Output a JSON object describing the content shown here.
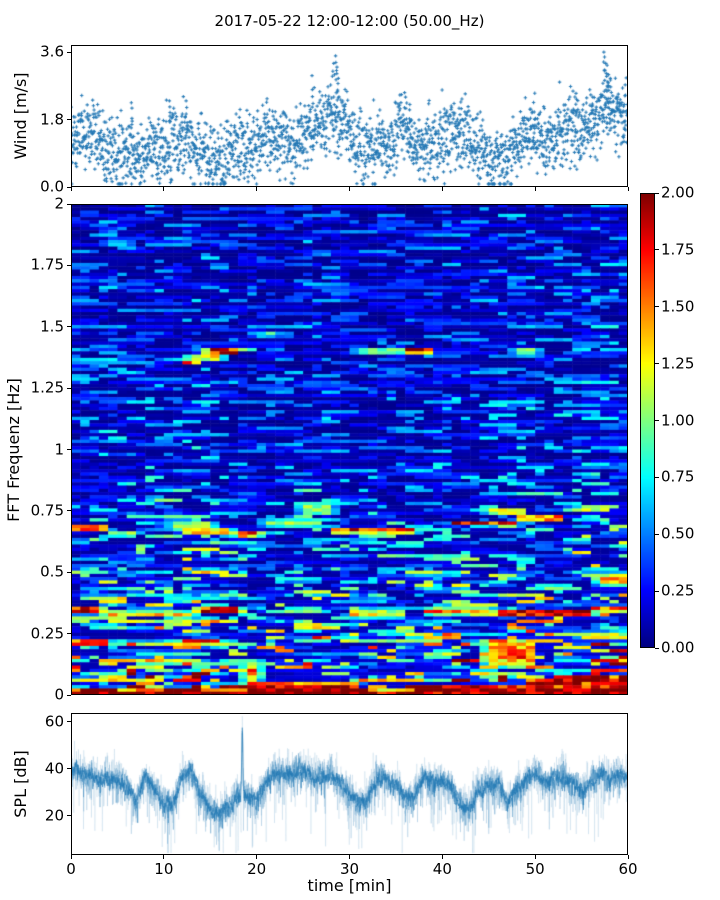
{
  "figure": {
    "title": "2017-05-22 12:00-12:00 (50.00_Hz)",
    "background": "#ffffff"
  },
  "colors": {
    "scatter": "#2277b4",
    "line": "#1f77b4",
    "axis": "#000000",
    "colormap_low": "#000080",
    "colormap_high": "#800000"
  },
  "chart_data": [
    {
      "id": "wind",
      "type": "scatter",
      "marker": "plus",
      "color": "#2277b4",
      "ylabel": "Wind [m/s]",
      "xlim": [
        0,
        60
      ],
      "ylim": [
        0,
        3.79
      ],
      "yticks": [
        0.0,
        1.8,
        3.6
      ],
      "ytick_labels": [
        "0.0",
        "1.8",
        "3.6"
      ],
      "xticks": [
        0,
        10,
        20,
        30,
        40,
        50,
        60
      ],
      "points_per_minute": 40,
      "spread": 0.78,
      "envelope_t_step": 1,
      "envelope_mean": [
        1.1,
        1.4,
        1.5,
        1.3,
        1.0,
        0.75,
        0.8,
        0.75,
        0.85,
        0.9,
        1.0,
        1.1,
        1.25,
        1.05,
        0.95,
        0.75,
        0.7,
        0.85,
        0.95,
        1.0,
        1.1,
        1.35,
        1.4,
        1.1,
        0.95,
        1.3,
        1.6,
        1.7,
        1.9,
        1.7,
        1.5,
        1.1,
        1.0,
        1.1,
        1.2,
        1.4,
        1.5,
        1.2,
        1.0,
        1.2,
        1.3,
        1.45,
        1.5,
        1.3,
        1.1,
        0.7,
        0.65,
        0.8,
        1.1,
        1.4,
        1.5,
        1.3,
        1.2,
        1.4,
        1.6,
        1.5,
        1.7,
        2.0,
        2.1,
        1.8,
        1.9
      ],
      "peaks": [
        {
          "t": 6.5,
          "y": 2.25
        },
        {
          "t": 10.6,
          "y": 2.3
        },
        {
          "t": 12.4,
          "y": 2.3
        },
        {
          "t": 26.0,
          "y": 2.6
        },
        {
          "t": 28.3,
          "y": 3.3
        },
        {
          "t": 28.5,
          "y": 3.5
        },
        {
          "t": 28.65,
          "y": 3.2
        },
        {
          "t": 28.8,
          "y": 2.9
        },
        {
          "t": 36.5,
          "y": 2.2
        },
        {
          "t": 41.8,
          "y": 2.1
        },
        {
          "t": 49.9,
          "y": 2.0
        },
        {
          "t": 54.4,
          "y": 2.5
        },
        {
          "t": 56.2,
          "y": 2.4
        },
        {
          "t": 57.4,
          "y": 3.6
        },
        {
          "t": 57.6,
          "y": 3.3
        },
        {
          "t": 57.75,
          "y": 3.25
        },
        {
          "t": 57.9,
          "y": 3.0
        },
        {
          "t": 58.1,
          "y": 2.9
        },
        {
          "t": 58.9,
          "y": 2.4
        },
        {
          "t": 59.6,
          "y": 2.2
        }
      ]
    },
    {
      "id": "spectrogram",
      "type": "heatmap",
      "ylabel": "FFT Frequenz [Hz]",
      "xlim": [
        0,
        60
      ],
      "ylim": [
        0,
        2
      ],
      "yticks": [
        0,
        0.25,
        0.5,
        0.75,
        1,
        1.25,
        1.5,
        1.75,
        2
      ],
      "ytick_labels": [
        "0",
        "0.25",
        "0.5",
        "0.75",
        "1",
        "1.25",
        "1.5",
        "1.75",
        "2"
      ],
      "colormap": "jet",
      "clim": [
        0,
        2
      ],
      "grid_cols": 60,
      "grid_rows": 150,
      "base_profile": [
        [
          0,
          1.5
        ],
        [
          0.03,
          1.15
        ],
        [
          0.08,
          0.85
        ],
        [
          0.15,
          0.7
        ],
        [
          0.25,
          0.56
        ],
        [
          0.35,
          0.5
        ],
        [
          0.5,
          0.44
        ],
        [
          0.7,
          0.36
        ],
        [
          0.9,
          0.28
        ],
        [
          1.2,
          0.25
        ],
        [
          1.6,
          0.23
        ],
        [
          2,
          0.22
        ]
      ],
      "time_activity": [
        [
          0,
          1.0
        ],
        [
          3,
          1.05
        ],
        [
          5,
          1.12
        ],
        [
          8,
          1.08
        ],
        [
          12,
          1.18
        ],
        [
          16,
          1.12
        ],
        [
          18,
          0.95
        ],
        [
          21,
          0.88
        ],
        [
          24,
          0.98
        ],
        [
          26,
          1.12
        ],
        [
          28,
          1.02
        ],
        [
          31,
          0.88
        ],
        [
          34,
          0.98
        ],
        [
          37,
          0.92
        ],
        [
          40,
          1.0
        ],
        [
          43,
          1.1
        ],
        [
          46,
          1.18
        ],
        [
          50,
          1.12
        ],
        [
          53,
          1.08
        ],
        [
          56,
          1.18
        ],
        [
          60,
          1.22
        ]
      ],
      "bands": [
        {
          "f": 1.84,
          "h": 0.012,
          "t0": 3.5,
          "t1": 6.5,
          "v": 0.75
        },
        {
          "f": 1.8,
          "h": 0.01,
          "t0": 25.5,
          "t1": 28.0,
          "v": 0.65
        },
        {
          "f": 1.355,
          "h": 0.012,
          "t0": 12.0,
          "t1": 14.0,
          "v": 1.55
        },
        {
          "f": 1.375,
          "h": 0.018,
          "t0": 12.5,
          "t1": 16.5,
          "v": 1.3
        },
        {
          "f": 1.4,
          "h": 0.014,
          "t0": 14.5,
          "t1": 18.0,
          "v": 1.95
        },
        {
          "f": 1.41,
          "h": 0.01,
          "t0": 18.0,
          "t1": 19.5,
          "v": 1.35
        },
        {
          "f": 1.47,
          "h": 0.012,
          "t0": 19.5,
          "t1": 22.5,
          "v": 0.85
        },
        {
          "f": 1.4,
          "h": 0.01,
          "t0": 30.5,
          "t1": 35.5,
          "v": 1.25
        },
        {
          "f": 1.405,
          "h": 0.013,
          "t0": 35.5,
          "t1": 39.0,
          "v": 1.95
        },
        {
          "f": 1.4,
          "h": 0.01,
          "t0": 47.5,
          "t1": 50.5,
          "v": 1.25
        },
        {
          "f": 0.68,
          "h": 0.012,
          "t0": 0.0,
          "t1": 3.8,
          "v": 1.8
        },
        {
          "f": 0.655,
          "h": 0.01,
          "t0": 4.0,
          "t1": 7.0,
          "v": 1.2
        },
        {
          "f": 0.69,
          "h": 0.022,
          "t0": 10.5,
          "t1": 15.5,
          "v": 1.15
        },
        {
          "f": 0.665,
          "h": 0.014,
          "t0": 12.0,
          "t1": 17.5,
          "v": 1.5
        },
        {
          "f": 0.655,
          "h": 0.012,
          "t0": 17.5,
          "t1": 20.5,
          "v": 1.85
        },
        {
          "f": 0.7,
          "h": 0.02,
          "t0": 20.5,
          "t1": 27.0,
          "v": 1.0
        },
        {
          "f": 0.755,
          "h": 0.022,
          "t0": 24.5,
          "t1": 28.5,
          "v": 1.15
        },
        {
          "f": 0.67,
          "h": 0.012,
          "t0": 28.0,
          "t1": 37.5,
          "v": 1.75
        },
        {
          "f": 0.7,
          "h": 0.012,
          "t0": 41.0,
          "t1": 48.0,
          "v": 1.7
        },
        {
          "f": 0.75,
          "h": 0.016,
          "t0": 44.5,
          "t1": 49.0,
          "v": 1.35
        },
        {
          "f": 0.72,
          "h": 0.012,
          "t0": 48.0,
          "t1": 53.0,
          "v": 1.75
        },
        {
          "f": 0.76,
          "h": 0.02,
          "t0": 54.5,
          "t1": 58.0,
          "v": 1.2
        },
        {
          "f": 0.47,
          "h": 0.025,
          "t0": 56.5,
          "t1": 60.0,
          "v": 1.45
        },
        {
          "f": 0.345,
          "h": 0.016,
          "t0": 0.0,
          "t1": 3.5,
          "v": 1.95
        },
        {
          "f": 0.33,
          "h": 0.013,
          "t0": 3.5,
          "t1": 13.5,
          "v": 1.35
        },
        {
          "f": 0.345,
          "h": 0.016,
          "t0": 13.5,
          "t1": 18.5,
          "v": 1.9
        },
        {
          "f": 0.3,
          "h": 0.01,
          "t0": 5.0,
          "t1": 18.0,
          "v": 1.1
        },
        {
          "f": 0.33,
          "h": 0.018,
          "t0": 30.0,
          "t1": 36.0,
          "v": 1.3
        },
        {
          "f": 0.34,
          "h": 0.015,
          "t0": 38.0,
          "t1": 45.5,
          "v": 1.5
        },
        {
          "f": 0.335,
          "h": 0.018,
          "t0": 45.5,
          "t1": 56.0,
          "v": 1.95
        },
        {
          "f": 0.35,
          "h": 0.012,
          "t0": 56.0,
          "t1": 60.0,
          "v": 1.6
        },
        {
          "f": 0.22,
          "h": 0.01,
          "t0": 0.0,
          "t1": 4.0,
          "v": 1.5
        },
        {
          "f": 0.21,
          "h": 0.01,
          "t0": 10.0,
          "t1": 14.0,
          "v": 1.4
        },
        {
          "f": 0.17,
          "h": 0.06,
          "t0": 44.5,
          "t1": 50.0,
          "v": 1.55
        },
        {
          "f": 0.1,
          "h": 0.05,
          "t0": 18.5,
          "t1": 20.5,
          "v": 1.5
        },
        {
          "f": 0.025,
          "h": 0.03,
          "t0": 18.5,
          "t1": 31.0,
          "v": 2.0
        },
        {
          "f": 0.02,
          "h": 0.022,
          "t0": 36.5,
          "t1": 60.0,
          "v": 2.0
        },
        {
          "f": 0.05,
          "h": 0.03,
          "t0": 56.0,
          "t1": 60.0,
          "v": 2.0
        },
        {
          "f": 0.01,
          "h": 0.012,
          "t0": 0.0,
          "t1": 60.0,
          "v": 2.0
        }
      ],
      "colorbar": {
        "ticks": [
          0.0,
          0.25,
          0.5,
          0.75,
          1.0,
          1.25,
          1.5,
          1.75,
          2.0
        ],
        "tick_labels": [
          "0.00",
          "0.25",
          "0.50",
          "0.75",
          "1.00",
          "1.25",
          "1.50",
          "1.75",
          "2.00"
        ]
      }
    },
    {
      "id": "spl",
      "type": "line",
      "color": "#1f77b4",
      "ylabel": "SPL [dB]",
      "xlabel": "time [min]",
      "xlim": [
        0,
        60
      ],
      "ylim": [
        3.4,
        63.8
      ],
      "yticks": [
        20,
        40,
        60
      ],
      "ytick_labels": [
        "20",
        "40",
        "60"
      ],
      "xticks": [
        0,
        10,
        20,
        30,
        40,
        50,
        60
      ],
      "xtick_labels": [
        "0",
        "10",
        "20",
        "30",
        "40",
        "50",
        "60"
      ],
      "envelope_t_step": 1,
      "envelope_mean": [
        40,
        38,
        37,
        36,
        37,
        35,
        33,
        26,
        36,
        32,
        26,
        25,
        37,
        38,
        30,
        23,
        22,
        24,
        30,
        29,
        27,
        34,
        40,
        38,
        39,
        38,
        37,
        36,
        38,
        34,
        30,
        26,
        28,
        37,
        36,
        34,
        27,
        29,
        37,
        35,
        34,
        33,
        24,
        23,
        32,
        34,
        33,
        25,
        31,
        35,
        38,
        34,
        36,
        38,
        33,
        30,
        34,
        38,
        36,
        37,
        35
      ],
      "spike": {
        "t": 18.45,
        "amp": 26,
        "sigma": 0.09
      }
    }
  ]
}
